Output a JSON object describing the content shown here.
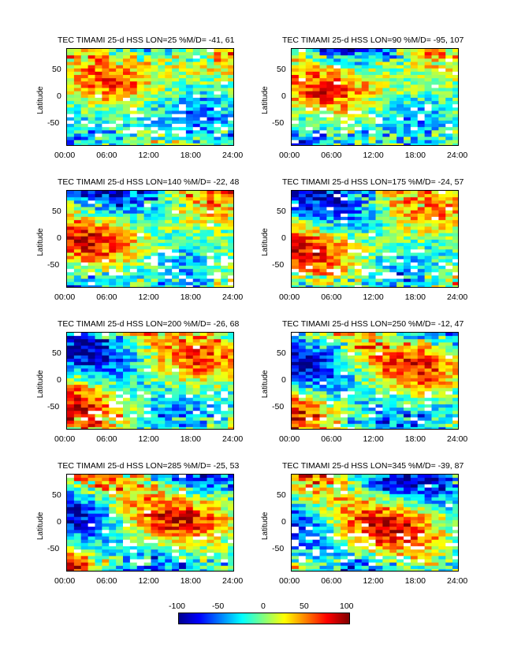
{
  "figure": {
    "panels": [
      {
        "title": "TEC TIMAMI 25-d HSS LON=25 %M/D=  -41,  61",
        "ylabel": "Latitude"
      },
      {
        "title": "TEC TIMAMI 25-d HSS LON=90 %M/D=  -95,  107",
        "ylabel": "Latitude"
      },
      {
        "title": "TEC TIMAMI 25-d HSS LON=140 %M/D=  -22,  48",
        "ylabel": "Latitude"
      },
      {
        "title": "TEC TIMAMI 25-d HSS LON=175 %M/D=  -24,  57",
        "ylabel": "Latitude"
      },
      {
        "title": "TEC TIMAMI 25-d HSS LON=200 %M/D=  -26,  68",
        "ylabel": "Latitude"
      },
      {
        "title": "TEC TIMAMI 25-d HSS LON=250 %M/D=  -12,  47",
        "ylabel": "Latitude"
      },
      {
        "title": "TEC TIMAMI 25-d HSS LON=285 %M/D=  -25,  53",
        "ylabel": "Latitude"
      },
      {
        "title": "TEC TIMAMI 25-d HSS LON=345 %M/D=  -39,  87",
        "ylabel": "Latitude"
      }
    ],
    "xticks": [
      "00:00",
      "06:00",
      "12:00",
      "18:00",
      "24:00"
    ],
    "yticks": [
      "50",
      "0",
      "-50"
    ],
    "colorbar": {
      "ticks": [
        "-100",
        "-50",
        "0",
        "50",
        "100"
      ],
      "colormap": "jet",
      "colors": [
        "#00008f",
        "#0000ff",
        "#00ffff",
        "#ffff00",
        "#ff0000",
        "#800000"
      ]
    }
  },
  "chart_data": {
    "type": "heatmap",
    "xlabel": "",
    "ylabel": "Latitude",
    "x_range": [
      "00:00",
      "24:00"
    ],
    "ylim": [
      -90,
      90
    ],
    "zlim": [
      -100,
      100
    ],
    "panels": [
      {
        "lon": 25,
        "min": -41,
        "max": 61
      },
      {
        "lon": 90,
        "min": -95,
        "max": 107
      },
      {
        "lon": 140,
        "min": -22,
        "max": 48
      },
      {
        "lon": 175,
        "min": -24,
        "max": 57
      },
      {
        "lon": 200,
        "min": -26,
        "max": 68
      },
      {
        "lon": 250,
        "min": -12,
        "max": 47
      },
      {
        "lon": 285,
        "min": -25,
        "max": 53
      },
      {
        "lon": 345,
        "min": -39,
        "max": 87
      }
    ]
  }
}
